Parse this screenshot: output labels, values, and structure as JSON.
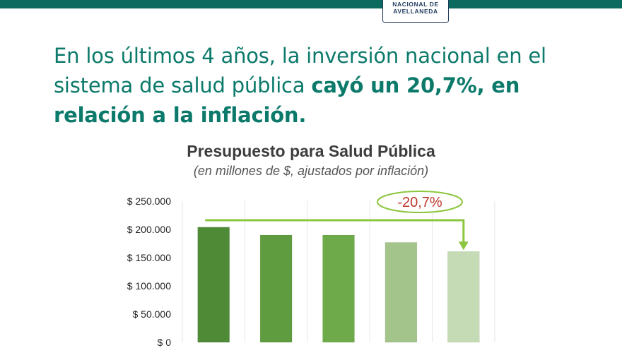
{
  "header": {
    "logo_lines": [
      "NACIONAL DE",
      "AVELLANEDA"
    ],
    "brand_color": "#0c6b5e"
  },
  "headline": {
    "normal": "En los últimos 4 años, la inversión nacional en el sistema de salud pública ",
    "bold": "cayó un 20,7%, en relación a la inflación",
    "end": "."
  },
  "chart_data": {
    "type": "bar",
    "title": "Presupuesto para Salud Pública",
    "subtitle": "(en millones de $, ajustados por inflación)",
    "categories": [
      "",
      "",
      "",
      "",
      ""
    ],
    "values": [
      204000,
      190000,
      190000,
      177000,
      161000
    ],
    "bar_colors": [
      "#4f8a37",
      "#5e9c3f",
      "#6ea94a",
      "#a3c58c",
      "#c4dbb5"
    ],
    "ylim": [
      0,
      250000
    ],
    "yticks": [
      0,
      50000,
      100000,
      150000,
      200000,
      250000
    ],
    "ytick_labels": [
      "$ 0",
      "$ 50.000",
      "$ 100.000",
      "$ 150.000",
      "$ 200.000",
      "$ 250.000"
    ],
    "grid": "vertical",
    "annotation": {
      "text": "-20,7%",
      "from_bar": 0,
      "to_bar": 4,
      "text_color": "#c0392b",
      "arrow_color": "#8cc63f"
    }
  }
}
